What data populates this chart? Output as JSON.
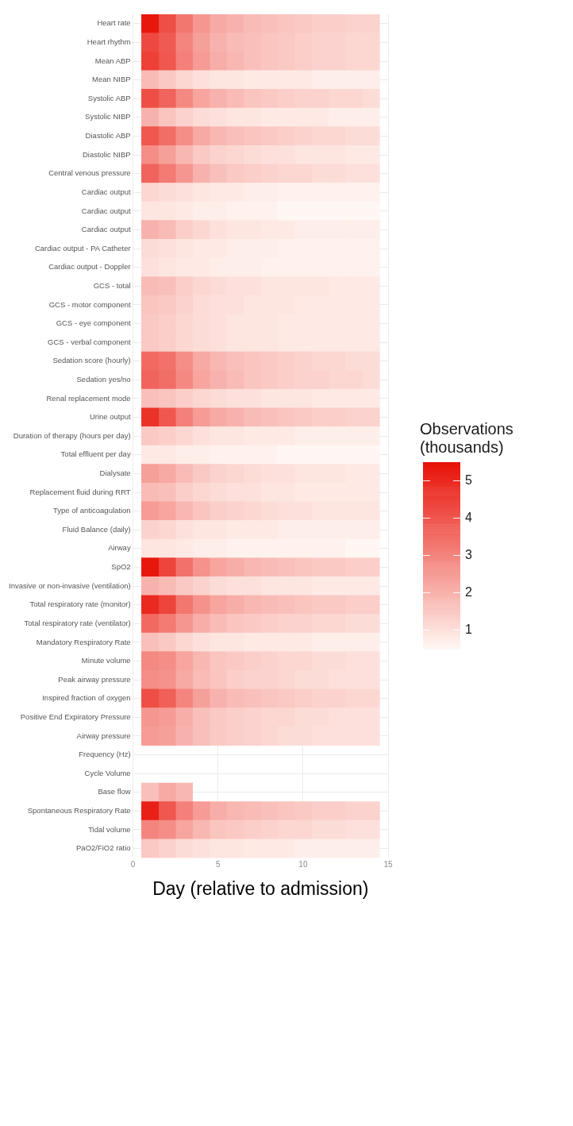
{
  "chart_data": {
    "type": "heatmap",
    "xlabel": "Day (relative to admission)",
    "clabel": "Observations (thousands)",
    "x": [
      1,
      2,
      3,
      4,
      5,
      6,
      7,
      8,
      9,
      10,
      11,
      12,
      13,
      14
    ],
    "xlim": [
      0,
      15
    ],
    "xticks": [
      0,
      5,
      10,
      15
    ],
    "y_categories": [
      "Heart rate",
      "Heart rhythm",
      "Mean ABP",
      "Mean NIBP",
      "Systolic ABP",
      "Systolic NIBP",
      "Diastolic ABP",
      "Diastolic NIBP",
      "Central venous pressure",
      "Cardiac output",
      "Cardiac output",
      "Cardiac output",
      "Cardiac output - PA Catheter",
      "Cardiac output - Doppler",
      "GCS - total",
      "GCS - motor component",
      "GCS - eye component",
      "GCS - verbal component",
      "Sedation score (hourly)",
      "Sedation yes/no",
      "Renal replacement mode",
      "Urine output",
      "Duration of therapy (hours per day)",
      "Total effluent per day",
      "Dialysate",
      "Replacement fluid during RRT",
      "Type of anticoagulation",
      "Fluid Balance (daily)",
      "Airway",
      "SpO2",
      "Invasive or non-invasive (ventilation)",
      "Total respiratory rate (monitor)",
      "Total respiratory rate (ventilator)",
      "Mandatory Respiratory Rate",
      "Minute volume",
      "Peak airway pressure",
      "Inspired fraction of oxygen",
      "Positive End Expiratory Pressure",
      "Airway pressure",
      "Frequency (Hz)",
      "Cycle Volume",
      "Base flow",
      "Spontaneous Respiratory Rate",
      "Tidal volume",
      "PaO2/FiO2 ratio"
    ],
    "cells": [
      [
        5.4,
        4.2,
        3.3,
        2.6,
        2.2,
        2.0,
        1.8,
        1.7,
        1.6,
        1.5,
        1.4,
        1.4,
        1.3,
        1.3
      ],
      [
        4.3,
        3.9,
        3.0,
        2.4,
        2.0,
        1.8,
        1.7,
        1.6,
        1.5,
        1.4,
        1.3,
        1.3,
        1.2,
        1.2
      ],
      [
        4.5,
        4.0,
        3.1,
        2.5,
        2.1,
        1.9,
        1.7,
        1.6,
        1.5,
        1.4,
        1.3,
        1.3,
        1.2,
        1.2
      ],
      [
        1.8,
        1.5,
        1.2,
        1.0,
        0.9,
        0.9,
        0.8,
        0.8,
        0.8,
        0.8,
        0.7,
        0.7,
        0.7,
        0.7
      ],
      [
        4.2,
        3.7,
        2.9,
        2.3,
        2.0,
        1.8,
        1.6,
        1.5,
        1.4,
        1.3,
        1.3,
        1.2,
        1.2,
        1.1
      ],
      [
        2.0,
        1.6,
        1.3,
        1.1,
        1.0,
        0.9,
        0.9,
        0.8,
        0.8,
        0.8,
        0.8,
        0.7,
        0.7,
        0.7
      ],
      [
        4.0,
        3.5,
        2.8,
        2.2,
        1.9,
        1.7,
        1.6,
        1.5,
        1.4,
        1.3,
        1.2,
        1.2,
        1.1,
        1.1
      ],
      [
        2.8,
        2.4,
        1.9,
        1.5,
        1.3,
        1.2,
        1.1,
        1.0,
        1.0,
        0.9,
        0.9,
        0.9,
        0.8,
        0.8
      ],
      [
        3.7,
        3.2,
        2.6,
        2.0,
        1.7,
        1.5,
        1.4,
        1.3,
        1.2,
        1.2,
        1.1,
        1.1,
        1.0,
        1.0
      ],
      [
        1.2,
        1.1,
        1.0,
        0.9,
        0.8,
        0.8,
        0.7,
        0.7,
        0.6,
        0.6,
        0.6,
        0.6,
        0.6,
        0.6
      ],
      [
        0.9,
        0.9,
        0.8,
        0.7,
        0.7,
        0.6,
        0.6,
        0.6,
        0.5,
        0.5,
        0.5,
        0.5,
        0.5,
        0.5
      ],
      [
        2.0,
        1.8,
        1.4,
        1.2,
        1.0,
        0.9,
        0.9,
        0.8,
        0.8,
        0.7,
        0.7,
        0.7,
        0.7,
        0.7
      ],
      [
        1.1,
        1.0,
        0.9,
        0.8,
        0.8,
        0.7,
        0.7,
        0.7,
        0.6,
        0.6,
        0.6,
        0.6,
        0.6,
        0.6
      ],
      [
        1.0,
        0.9,
        0.8,
        0.8,
        0.7,
        0.7,
        0.7,
        0.6,
        0.6,
        0.6,
        0.6,
        0.6,
        0.6,
        0.6
      ],
      [
        1.8,
        1.7,
        1.4,
        1.2,
        1.1,
        1.0,
        1.0,
        0.9,
        0.9,
        0.9,
        0.9,
        0.8,
        0.8,
        0.8
      ],
      [
        1.6,
        1.5,
        1.3,
        1.1,
        1.0,
        1.0,
        0.9,
        0.9,
        0.9,
        0.8,
        0.8,
        0.8,
        0.8,
        0.8
      ],
      [
        1.5,
        1.4,
        1.2,
        1.1,
        1.0,
        0.9,
        0.9,
        0.9,
        0.8,
        0.8,
        0.8,
        0.8,
        0.8,
        0.8
      ],
      [
        1.5,
        1.4,
        1.2,
        1.1,
        1.0,
        0.9,
        0.9,
        0.9,
        0.8,
        0.8,
        0.8,
        0.8,
        0.8,
        0.8
      ],
      [
        3.6,
        3.4,
        2.8,
        2.2,
        1.9,
        1.7,
        1.6,
        1.5,
        1.4,
        1.3,
        1.2,
        1.2,
        1.1,
        1.1
      ],
      [
        3.7,
        3.5,
        2.9,
        2.3,
        2.0,
        1.8,
        1.6,
        1.5,
        1.4,
        1.3,
        1.3,
        1.2,
        1.2,
        1.1
      ],
      [
        1.7,
        1.6,
        1.4,
        1.2,
        1.1,
        1.0,
        1.0,
        0.9,
        0.9,
        0.9,
        0.8,
        0.8,
        0.8,
        0.8
      ],
      [
        4.8,
        4.0,
        3.1,
        2.5,
        2.2,
        2.0,
        1.8,
        1.7,
        1.6,
        1.5,
        1.4,
        1.4,
        1.3,
        1.3
      ],
      [
        1.5,
        1.4,
        1.2,
        1.0,
        0.9,
        0.9,
        0.8,
        0.8,
        0.8,
        0.7,
        0.7,
        0.7,
        0.7,
        0.7
      ],
      [
        0.8,
        0.8,
        0.7,
        0.7,
        0.6,
        0.6,
        0.6,
        0.6,
        0.5,
        0.5,
        0.5,
        0.5,
        0.5,
        0.5
      ],
      [
        2.4,
        2.2,
        1.8,
        1.5,
        1.3,
        1.2,
        1.1,
        1.0,
        1.0,
        0.9,
        0.9,
        0.9,
        0.8,
        0.8
      ],
      [
        1.8,
        1.7,
        1.4,
        1.2,
        1.1,
        1.0,
        1.0,
        0.9,
        0.9,
        0.8,
        0.8,
        0.8,
        0.8,
        0.8
      ],
      [
        2.5,
        2.3,
        1.9,
        1.6,
        1.4,
        1.3,
        1.2,
        1.1,
        1.0,
        1.0,
        0.9,
        0.9,
        0.9,
        0.9
      ],
      [
        1.3,
        1.2,
        1.0,
        0.9,
        0.9,
        0.8,
        0.8,
        0.8,
        0.7,
        0.7,
        0.7,
        0.7,
        0.7,
        0.7
      ],
      [
        0.9,
        0.9,
        0.8,
        0.7,
        0.7,
        0.6,
        0.6,
        0.6,
        0.6,
        0.6,
        0.6,
        0.6,
        0.5,
        0.5
      ],
      [
        5.4,
        4.4,
        3.4,
        2.7,
        2.3,
        2.1,
        1.9,
        1.8,
        1.7,
        1.6,
        1.5,
        1.5,
        1.4,
        1.4
      ],
      [
        2.0,
        1.8,
        1.5,
        1.3,
        1.1,
        1.0,
        1.0,
        0.9,
        0.9,
        0.9,
        0.8,
        0.8,
        0.8,
        0.8
      ],
      [
        5.0,
        4.4,
        3.3,
        2.7,
        2.3,
        2.1,
        1.9,
        1.8,
        1.7,
        1.6,
        1.5,
        1.5,
        1.4,
        1.4
      ],
      [
        3.6,
        3.2,
        2.6,
        2.1,
        1.8,
        1.6,
        1.5,
        1.4,
        1.3,
        1.3,
        1.2,
        1.2,
        1.1,
        1.1
      ],
      [
        1.7,
        1.5,
        1.2,
        1.0,
        0.9,
        0.9,
        0.8,
        0.8,
        0.8,
        0.8,
        0.7,
        0.7,
        0.7,
        0.7
      ],
      [
        2.9,
        2.8,
        2.3,
        1.9,
        1.6,
        1.5,
        1.4,
        1.3,
        1.2,
        1.2,
        1.1,
        1.1,
        1.0,
        1.0
      ],
      [
        2.8,
        2.7,
        2.2,
        1.8,
        1.6,
        1.4,
        1.3,
        1.3,
        1.2,
        1.1,
        1.1,
        1.0,
        1.0,
        1.0
      ],
      [
        4.2,
        3.8,
        3.0,
        2.4,
        2.0,
        1.8,
        1.7,
        1.6,
        1.5,
        1.4,
        1.3,
        1.3,
        1.2,
        1.2
      ],
      [
        2.6,
        2.5,
        2.1,
        1.7,
        1.5,
        1.4,
        1.3,
        1.2,
        1.2,
        1.1,
        1.1,
        1.0,
        1.0,
        1.0
      ],
      [
        2.5,
        2.4,
        2.0,
        1.7,
        1.5,
        1.4,
        1.3,
        1.2,
        1.1,
        1.1,
        1.0,
        1.0,
        1.0,
        1.0
      ],
      [
        null,
        null,
        null,
        null,
        null,
        null,
        null,
        null,
        null,
        null,
        null,
        null,
        null,
        null
      ],
      [
        null,
        null,
        null,
        null,
        null,
        null,
        null,
        null,
        null,
        null,
        null,
        null,
        null,
        null
      ],
      [
        1.7,
        2.2,
        1.9,
        null,
        null,
        null,
        null,
        null,
        null,
        null,
        null,
        null,
        null,
        null
      ],
      [
        5.2,
        4.0,
        3.1,
        2.5,
        2.1,
        1.9,
        1.8,
        1.7,
        1.6,
        1.5,
        1.4,
        1.4,
        1.3,
        1.3
      ],
      [
        3.0,
        2.8,
        2.3,
        1.9,
        1.6,
        1.5,
        1.4,
        1.3,
        1.2,
        1.2,
        1.1,
        1.1,
        1.0,
        1.0
      ],
      [
        1.5,
        1.3,
        1.1,
        1.0,
        0.9,
        0.9,
        0.8,
        0.8,
        0.8,
        0.7,
        0.7,
        0.7,
        0.7,
        0.7
      ]
    ],
    "clim": [
      0.5,
      5.5
    ],
    "cticks": [
      1,
      2,
      3,
      4,
      5
    ],
    "grid": true
  }
}
